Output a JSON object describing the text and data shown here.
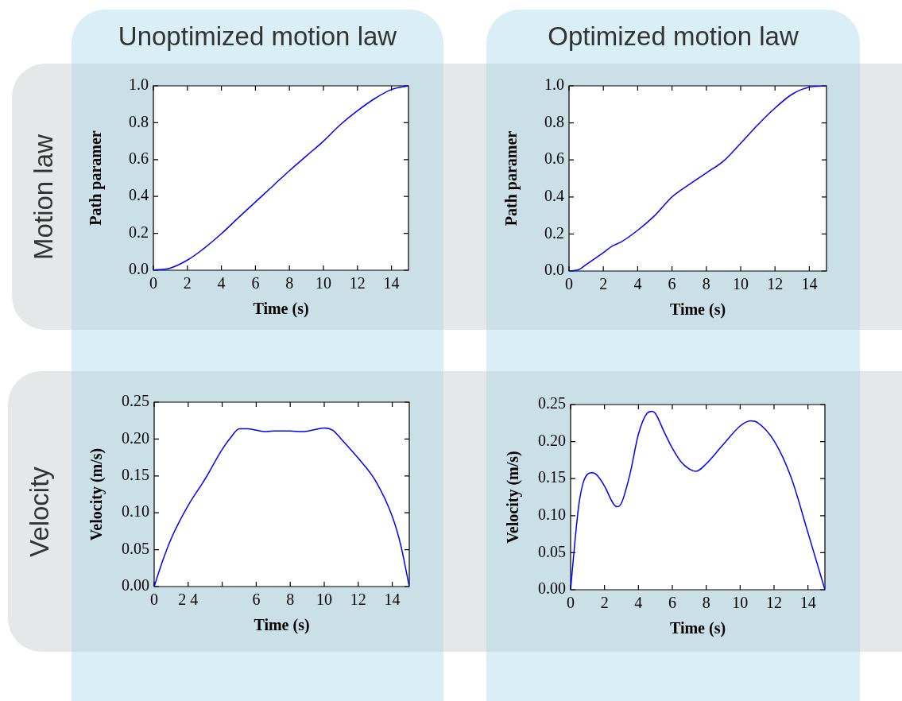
{
  "chart_data": [
    {
      "type": "line",
      "title": "Unoptimized motion law",
      "annotations": [
        "Motion law"
      ],
      "xlabel": "Time (s)",
      "ylabel": "Path paramer",
      "marker": "none",
      "color": "#0000ff",
      "x": [
        0,
        1,
        2,
        3,
        4,
        5,
        6,
        7,
        8,
        9,
        10,
        11,
        12,
        13,
        14,
        15
      ],
      "values": [
        0,
        0.012,
        0.055,
        0.12,
        0.198,
        0.285,
        0.37,
        0.455,
        0.54,
        0.62,
        0.7,
        0.79,
        0.865,
        0.93,
        0.98,
        1.0
      ],
      "xlim": [
        0,
        15
      ],
      "xticks": [
        0,
        2,
        4,
        6,
        8,
        10,
        12,
        14
      ],
      "ylim": [
        0,
        1
      ],
      "yticks": [
        {
          "value": 0,
          "label": "0.0"
        },
        0.2,
        0.4,
        0.6,
        0.8,
        {
          "value": 1,
          "label": "1.0"
        }
      ]
    },
    {
      "type": "line",
      "title": "Optimized motion law",
      "xlabel": "Time (s)",
      "ylabel": "Path paramer",
      "marker": "none",
      "color": "#0000ff",
      "x": [
        0,
        0.5,
        1,
        2,
        2.5,
        3,
        4,
        5,
        6,
        7,
        8,
        9,
        10,
        11,
        12,
        13,
        14,
        15
      ],
      "values": [
        0,
        0.005,
        0.035,
        0.099,
        0.134,
        0.155,
        0.22,
        0.3,
        0.4,
        0.467,
        0.53,
        0.594,
        0.69,
        0.79,
        0.88,
        0.955,
        0.993,
        1.0
      ],
      "xlim": [
        0,
        15
      ],
      "xticks": [
        0,
        2,
        4,
        6,
        8,
        10,
        12,
        14
      ],
      "ylim": [
        0,
        1
      ],
      "yticks": [
        {
          "value": 0,
          "label": "0.0"
        },
        0.2,
        0.4,
        0.6,
        0.8,
        {
          "value": 1,
          "label": "1.0"
        }
      ]
    },
    {
      "type": "line",
      "annotations": [
        "Velocity"
      ],
      "xlabel": "Time (s)",
      "ylabel": "Velocity (m/s)",
      "marker": "none",
      "color": "#0000ff",
      "x": [
        0,
        0.5,
        1,
        2,
        3,
        4,
        4.5,
        5,
        5.5,
        6,
        6.5,
        7,
        8,
        8.7,
        9.5,
        10,
        10.5,
        11,
        12,
        13,
        14,
        14.5,
        15
      ],
      "values": [
        0,
        0.035,
        0.065,
        0.11,
        0.146,
        0.186,
        0.202,
        0.214,
        0.214,
        0.212,
        0.21,
        0.211,
        0.211,
        0.21,
        0.213,
        0.215,
        0.212,
        0.2,
        0.174,
        0.144,
        0.095,
        0.056,
        0
      ],
      "xlim": [
        0,
        15
      ],
      "xticks": [
        0,
        {
          "value": 2,
          "label": "2 4"
        },
        {
          "value": 4,
          "label": null
        },
        6,
        8,
        10,
        12,
        14
      ],
      "ylim": [
        0,
        0.25
      ],
      "yticks": [
        {
          "value": 0,
          "label": "0.00"
        },
        {
          "value": 0.05,
          "label": "0.05"
        },
        {
          "value": 0.1,
          "label": "0.10"
        },
        {
          "value": 0.15,
          "label": "0.15"
        },
        {
          "value": 0.2,
          "label": "0.20"
        },
        {
          "value": 0.25,
          "label": "0.25"
        }
      ]
    },
    {
      "type": "line",
      "xlabel": "Time (s)",
      "ylabel": "Velocity (m/s)",
      "marker": "none",
      "color": "#0000ff",
      "x": [
        0,
        0.25,
        0.5,
        0.75,
        1,
        1.25,
        1.5,
        2,
        2.5,
        2.75,
        3,
        3.5,
        4,
        4.5,
        4.8,
        5,
        5.5,
        6,
        6.5,
        7,
        7.4,
        8,
        9,
        10,
        10.6,
        11,
        12,
        13,
        14,
        15
      ],
      "values": [
        0,
        0.064,
        0.117,
        0.145,
        0.156,
        0.158,
        0.156,
        0.14,
        0.117,
        0.112,
        0.117,
        0.156,
        0.21,
        0.238,
        0.241,
        0.238,
        0.214,
        0.191,
        0.173,
        0.163,
        0.16,
        0.17,
        0.196,
        0.221,
        0.228,
        0.226,
        0.201,
        0.152,
        0.077,
        0
      ],
      "xlim": [
        0,
        15
      ],
      "xticks": [
        0,
        2,
        4,
        6,
        8,
        10,
        12,
        14
      ],
      "ylim": [
        0,
        0.25
      ],
      "yticks": [
        {
          "value": 0,
          "label": "0.00"
        },
        {
          "value": 0.05,
          "label": "0.05"
        },
        {
          "value": 0.1,
          "label": "0.10"
        },
        {
          "value": 0.15,
          "label": "0.15"
        },
        {
          "value": 0.2,
          "label": "0.20"
        },
        {
          "value": 0.25,
          "label": "0.25"
        }
      ]
    }
  ]
}
